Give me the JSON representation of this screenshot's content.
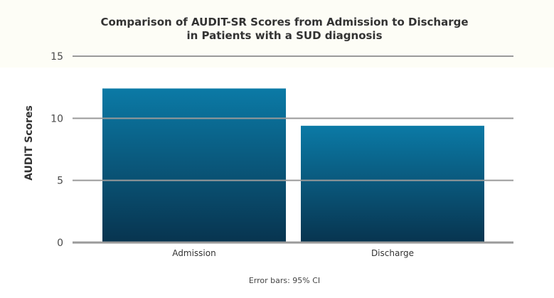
{
  "chart_data": {
    "type": "bar",
    "title_lines": [
      "Comparison of AUDIT-SR Scores from Admission to Discharge",
      "in Patients with a SUD diagnosis"
    ],
    "xlabel": "",
    "ylabel": "AUDIT Scores",
    "categories": [
      "Admission",
      "Discharge"
    ],
    "values": [
      12.4,
      9.4
    ],
    "ylim": [
      0,
      15
    ],
    "yticks": [
      0,
      5,
      10,
      15
    ],
    "grid": true,
    "footnote": "Error bars: 95% CI"
  },
  "colors": {
    "bar_top": "#0b7aa6",
    "bar_bottom": "#08344f",
    "grid": "#9a9a9a",
    "axis": "#9a9a9a",
    "title_band": "#fdfdf6"
  }
}
